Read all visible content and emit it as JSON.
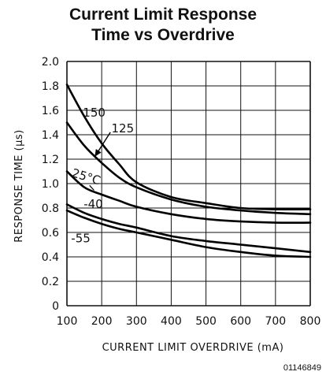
{
  "chart_data": {
    "type": "line",
    "title_line1": "Current Limit Response",
    "title_line2": "Time vs Overdrive",
    "xlabel": "CURRENT LIMIT OVERDRIVE (mA)",
    "ylabel": "RESPONSE TIME (µs)",
    "xlim": [
      100,
      800
    ],
    "ylim": [
      0,
      2.0
    ],
    "xticks": [
      "100",
      "200",
      "300",
      "400",
      "500",
      "600",
      "700",
      "800"
    ],
    "yticks": [
      "0",
      "0.2",
      "0.4",
      "0.6",
      "0.8",
      "1.0",
      "1.2",
      "1.4",
      "1.6",
      "1.8",
      "2.0"
    ],
    "grid": true,
    "legend": "none",
    "series": [
      {
        "name": "150",
        "x": [
          100,
          150,
          200,
          250,
          300,
          400,
          500,
          600,
          700,
          800
        ],
        "y": [
          1.81,
          1.55,
          1.33,
          1.16,
          1.01,
          0.89,
          0.84,
          0.8,
          0.79,
          0.79
        ]
      },
      {
        "name": "125",
        "x": [
          100,
          150,
          200,
          250,
          300,
          400,
          500,
          600,
          700,
          800
        ],
        "y": [
          1.5,
          1.31,
          1.17,
          1.05,
          0.97,
          0.87,
          0.81,
          0.78,
          0.76,
          0.75
        ]
      },
      {
        "name": "25°C",
        "x": [
          100,
          150,
          200,
          250,
          300,
          400,
          500,
          600,
          700,
          800
        ],
        "y": [
          1.1,
          0.97,
          0.91,
          0.86,
          0.81,
          0.75,
          0.71,
          0.69,
          0.68,
          0.68
        ]
      },
      {
        "name": "-40",
        "x": [
          100,
          150,
          200,
          250,
          300,
          400,
          500,
          600,
          700,
          800
        ],
        "y": [
          0.83,
          0.76,
          0.71,
          0.67,
          0.64,
          0.57,
          0.53,
          0.5,
          0.47,
          0.44
        ]
      },
      {
        "name": "-55",
        "x": [
          100,
          150,
          200,
          250,
          300,
          400,
          500,
          600,
          700,
          800
        ],
        "y": [
          0.78,
          0.72,
          0.67,
          0.63,
          0.6,
          0.54,
          0.48,
          0.44,
          0.41,
          0.4
        ]
      }
    ],
    "annotations": [
      "150",
      "125",
      "25°C",
      "-40",
      "-55"
    ],
    "figure_id": "01146849"
  }
}
